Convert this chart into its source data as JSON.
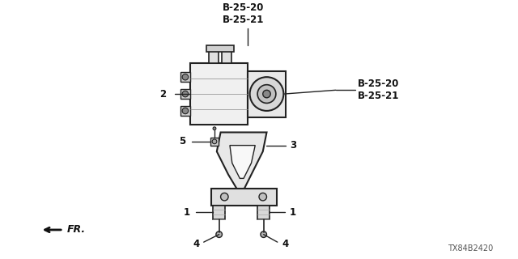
{
  "bg_color": "#ffffff",
  "diagram_id": "TX84B2420",
  "labels": {
    "top_label": "B-25-20\nB-25-21",
    "right_label": "B-25-20\nB-25-21",
    "label_2": "2",
    "label_3": "3",
    "label_4a": "4",
    "label_4b": "4",
    "label_1a": "1",
    "label_1b": "1",
    "label_5": "5",
    "fr_label": "FR."
  },
  "line_color": "#222222",
  "text_color": "#111111"
}
